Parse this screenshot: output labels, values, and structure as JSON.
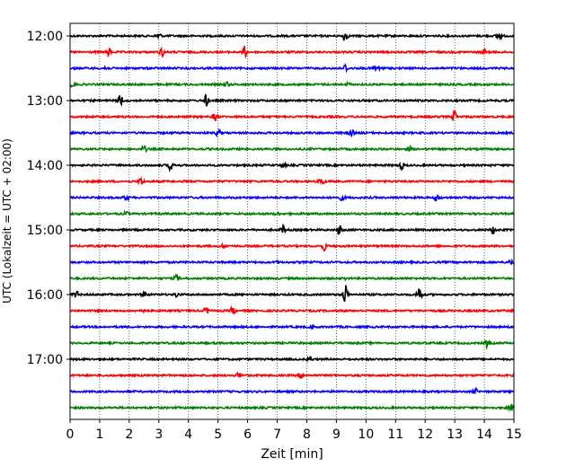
{
  "chart_data": {
    "type": "line",
    "title": "",
    "xlabel": "Zeit  [min]",
    "ylabel": "UTC (Lokalzeit = UTC + 02:00)",
    "xlim": [
      0,
      15
    ],
    "x_ticks": [
      "0",
      "1",
      "2",
      "3",
      "4",
      "5",
      "6",
      "7",
      "8",
      "9",
      "10",
      "11",
      "12",
      "13",
      "14",
      "15"
    ],
    "grid": "vertical dotted",
    "legend": "none",
    "row_colors": [
      "#000000",
      "#ff0000",
      "#0000ff",
      "#008000"
    ],
    "y_tick_rows": [
      {
        "row": 0,
        "label": "12:00"
      },
      {
        "row": 4,
        "label": "13:00"
      },
      {
        "row": 8,
        "label": "14:00"
      },
      {
        "row": 12,
        "label": "15:00"
      },
      {
        "row": 16,
        "label": "16:00"
      },
      {
        "row": 20,
        "label": "17:00"
      }
    ],
    "traces": [
      {
        "start": "12:00",
        "events": [
          [
            3,
            0.6
          ],
          [
            9.3,
            1.2
          ],
          [
            14.5,
            0.9
          ]
        ]
      },
      {
        "start": "12:15",
        "events": [
          [
            1.3,
            0.9
          ],
          [
            3.1,
            0.9
          ],
          [
            5.9,
            1.1
          ],
          [
            14,
            0.5
          ]
        ]
      },
      {
        "start": "12:30",
        "events": [
          [
            1.2,
            0.4
          ],
          [
            9.3,
            0.8
          ],
          [
            10.3,
            0.8
          ],
          [
            10.5,
            0.6
          ]
        ]
      },
      {
        "start": "12:45",
        "events": [
          [
            0.1,
            0.5
          ],
          [
            5.3,
            0.5
          ],
          [
            9.4,
            0.3
          ]
        ]
      },
      {
        "start": "13:00",
        "events": [
          [
            1.7,
            1.3
          ],
          [
            4.6,
            1.2
          ]
        ]
      },
      {
        "start": "13:15",
        "events": [
          [
            4.9,
            0.9
          ],
          [
            13,
            1.2
          ]
        ]
      },
      {
        "start": "13:30",
        "events": [
          [
            5.0,
            0.7
          ],
          [
            9.5,
            0.7
          ]
        ]
      },
      {
        "start": "13:45",
        "events": [
          [
            2.5,
            0.7
          ],
          [
            11.5,
            0.3
          ]
        ]
      },
      {
        "start": "14:00",
        "events": [
          [
            3.4,
            1.0
          ],
          [
            11.2,
            0.8
          ],
          [
            7.2,
            0.4
          ]
        ]
      },
      {
        "start": "14:15",
        "events": [
          [
            2.4,
            0.9
          ],
          [
            8.5,
            0.9
          ]
        ]
      },
      {
        "start": "14:30",
        "events": [
          [
            1.9,
            0.6
          ],
          [
            9.2,
            0.6
          ],
          [
            12.4,
            0.8
          ]
        ]
      },
      {
        "start": "14:45",
        "events": [
          [
            1.9,
            0.4
          ],
          [
            7.0,
            0.3
          ]
        ]
      },
      {
        "start": "15:00",
        "events": [
          [
            7.2,
            0.8
          ],
          [
            9.1,
            1.0
          ],
          [
            14.3,
            0.8
          ]
        ]
      },
      {
        "start": "15:15",
        "events": [
          [
            8.6,
            0.8
          ],
          [
            5.2,
            0.4
          ]
        ]
      },
      {
        "start": "15:30",
        "events": [
          [
            14.9,
            0.5
          ],
          [
            7.0,
            0.2
          ]
        ]
      },
      {
        "start": "15:45",
        "events": [
          [
            3.6,
            0.7
          ],
          [
            9.3,
            0.2
          ]
        ]
      },
      {
        "start": "16:00",
        "events": [
          [
            0.2,
            0.8
          ],
          [
            2.5,
            0.7
          ],
          [
            3.6,
            0.5
          ],
          [
            9.3,
            2.2
          ],
          [
            11.8,
            2.0
          ]
        ]
      },
      {
        "start": "16:15",
        "events": [
          [
            2.4,
            0.5
          ],
          [
            4.6,
            0.7
          ],
          [
            5.5,
            0.8
          ]
        ]
      },
      {
        "start": "16:30",
        "events": [
          [
            8.2,
            0.2
          ]
        ]
      },
      {
        "start": "16:45",
        "events": [
          [
            14.1,
            0.8
          ]
        ]
      },
      {
        "start": "17:00",
        "events": [
          [
            8.1,
            0.5
          ]
        ]
      },
      {
        "start": "17:15",
        "events": [
          [
            5.7,
            0.6
          ],
          [
            7.8,
            0.5
          ]
        ]
      },
      {
        "start": "17:30",
        "events": [
          [
            13.7,
            0.5
          ],
          [
            9.0,
            0.2
          ]
        ]
      },
      {
        "start": "17:45",
        "events": [
          [
            14.9,
            0.7
          ]
        ]
      }
    ]
  }
}
